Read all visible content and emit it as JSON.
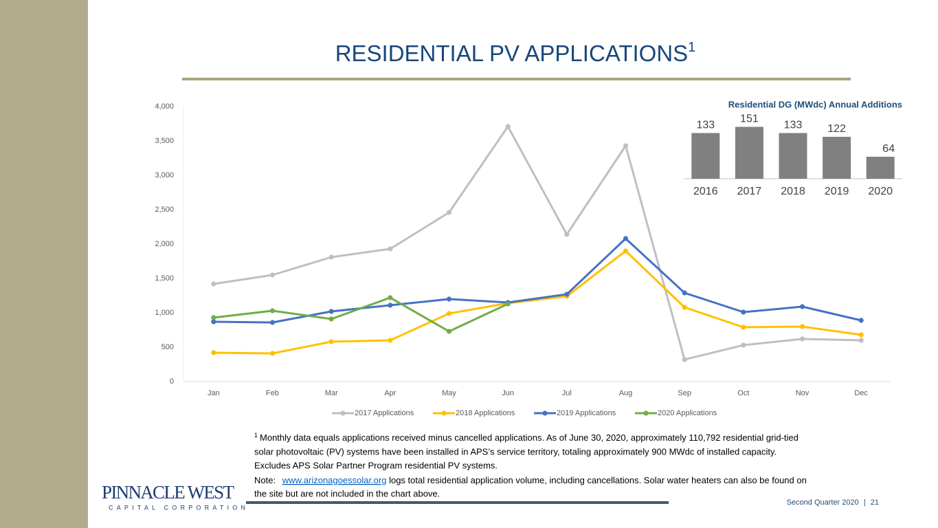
{
  "title": "RESIDENTIAL PV APPLICATIONS",
  "title_sup": "1",
  "chart_data": [
    {
      "type": "line",
      "categories": [
        "Jan",
        "Feb",
        "Mar",
        "Apr",
        "May",
        "Jun",
        "Jul",
        "Aug",
        "Sep",
        "Oct",
        "Nov",
        "Dec"
      ],
      "series": [
        {
          "name": "2017 Applications",
          "color": "#bfbfbf",
          "values": [
            1420,
            1550,
            1810,
            1930,
            2460,
            3710,
            2140,
            3430,
            320,
            530,
            620,
            600
          ]
        },
        {
          "name": "2018 Applications",
          "color": "#ffc000",
          "values": [
            420,
            410,
            580,
            600,
            990,
            1140,
            1240,
            1900,
            1080,
            790,
            800,
            680
          ]
        },
        {
          "name": "2019 Applications",
          "color": "#4472c4",
          "values": [
            870,
            860,
            1020,
            1110,
            1200,
            1150,
            1270,
            2080,
            1290,
            1010,
            1090,
            890
          ]
        },
        {
          "name": "2020 Applications",
          "color": "#70ad47",
          "values": [
            930,
            1030,
            910,
            1220,
            730,
            1130,
            null,
            null,
            null,
            null,
            null,
            null
          ]
        }
      ],
      "ylim": [
        0,
        4000
      ],
      "yticks": [
        0,
        500,
        {
          "value": 1000,
          "label": "1,000"
        },
        {
          "value": 1500,
          "label": "1,500"
        },
        {
          "value": 2000,
          "label": "2,000"
        },
        {
          "value": 2500,
          "label": "2,500"
        },
        {
          "value": 3000,
          "label": "3,000"
        },
        {
          "value": 3500,
          "label": "3,500"
        },
        {
          "value": 4000,
          "label": "4,000"
        }
      ],
      "legend": "bottom"
    },
    {
      "type": "bar",
      "title": "Residential DG (MWdc) Annual Additions",
      "categories": [
        "2016",
        "2017",
        "2018",
        "2019",
        "2020"
      ],
      "values": [
        133,
        151,
        133,
        122,
        64
      ],
      "color": "#808080"
    }
  ],
  "footnote": {
    "number": "1",
    "lines": [
      "Monthly data equals applications received minus cancelled applications. As of June 30, 2020, approximately 110,792 residential grid-tied",
      "solar photovoltaic (PV) systems have been installed in APS’s service territory, totaling approximately 900 MWdc of installed capacity.",
      "Excludes APS Solar Partner Program residential PV systems."
    ]
  },
  "note": {
    "label": "Note:",
    "link": "www.arizonagoessolar.org",
    "text": "logs total residential application volume, including cancellations.  Solar water heaters can also be found on",
    "continuation": "the site but are not included in the chart above."
  },
  "logo": {
    "name": "PINNACLE WEST",
    "subtitle": "CAPITAL CORPORATION"
  },
  "footer": {
    "quarter": "Second Quarter 2020",
    "separator": "|",
    "page": "21"
  }
}
